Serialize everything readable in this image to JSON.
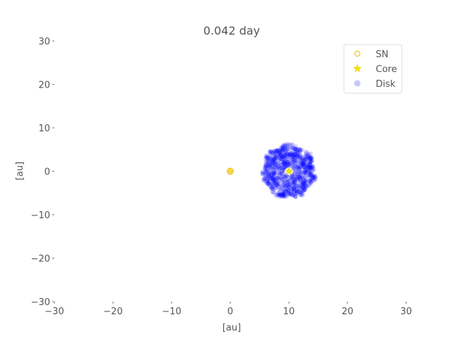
{
  "chart_data": {
    "type": "scatter",
    "title": "0.042 day",
    "xlabel": "[au]",
    "ylabel": "[au]",
    "xlim": [
      -30,
      30
    ],
    "ylim": [
      -30,
      30
    ],
    "xticks": [
      "−30",
      "−20",
      "−10",
      "0",
      "10",
      "20",
      "30"
    ],
    "yticks": [
      "−30",
      "−20",
      "−10",
      "0",
      "10",
      "20",
      "30"
    ],
    "grid": false,
    "legend_position": "top-right",
    "series": [
      {
        "name": "SN",
        "marker": "circle-hollow",
        "color": "#f2c230",
        "points": [
          [
            0,
            0
          ]
        ]
      },
      {
        "name": "Core",
        "marker": "star",
        "color": "#f5e800",
        "points": [
          [
            10,
            0
          ]
        ]
      },
      {
        "name": "Disk",
        "marker": "circle",
        "color": "#0000ff",
        "center": [
          10,
          0
        ],
        "radius_range": [
          0.5,
          4.5
        ]
      }
    ]
  }
}
